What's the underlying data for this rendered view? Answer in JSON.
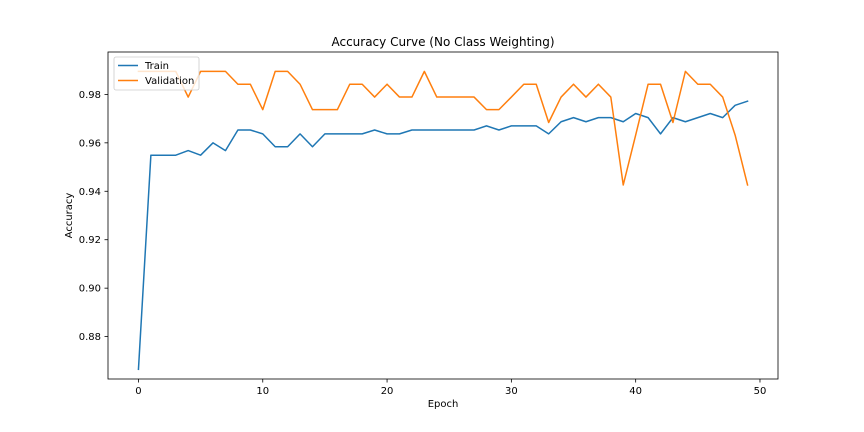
{
  "chart_data": {
    "type": "line",
    "title": "Accuracy Curve (No Class Weighting)",
    "xlabel": "Epoch",
    "ylabel": "Accuracy",
    "xlim": [
      -2.45,
      51.45
    ],
    "ylim": [
      0.8625,
      0.9975
    ],
    "xticks": [
      0,
      10,
      20,
      30,
      40,
      50
    ],
    "yticks": [
      0.88,
      0.9,
      0.92,
      0.94,
      0.96,
      0.98
    ],
    "ytick_labels": [
      "0.88",
      "0.90",
      "0.92",
      "0.94",
      "0.96",
      "0.98"
    ],
    "grid": false,
    "legend_position": "upper-left",
    "x": [
      0,
      1,
      2,
      3,
      4,
      5,
      6,
      7,
      8,
      9,
      10,
      11,
      12,
      13,
      14,
      15,
      16,
      17,
      18,
      19,
      20,
      21,
      22,
      23,
      24,
      25,
      26,
      27,
      28,
      29,
      30,
      31,
      32,
      33,
      34,
      35,
      36,
      37,
      38,
      39,
      40,
      41,
      42,
      43,
      44,
      45,
      46,
      47,
      48,
      49
    ],
    "series": [
      {
        "name": "Train",
        "color": "#1f77b4",
        "values": [
          0.8665,
          0.9549,
          0.9549,
          0.9549,
          0.9568,
          0.9549,
          0.96,
          0.9568,
          0.9653,
          0.9653,
          0.9637,
          0.9584,
          0.9584,
          0.9637,
          0.9584,
          0.9637,
          0.9637,
          0.9637,
          0.9637,
          0.9653,
          0.9637,
          0.9637,
          0.9653,
          0.9653,
          0.9653,
          0.9653,
          0.9653,
          0.9653,
          0.967,
          0.9653,
          0.967,
          0.967,
          0.967,
          0.9637,
          0.9687,
          0.9704,
          0.9687,
          0.9704,
          0.9704,
          0.9687,
          0.9721,
          0.9704,
          0.9637,
          0.9704,
          0.9687,
          0.9704,
          0.9721,
          0.9704,
          0.9755,
          0.9772
        ]
      },
      {
        "name": "Validation",
        "color": "#ff7f0e",
        "values": [
          0.9895,
          0.9895,
          0.9895,
          0.9895,
          0.9789,
          0.9895,
          0.9895,
          0.9895,
          0.9842,
          0.9842,
          0.9737,
          0.9895,
          0.9895,
          0.9842,
          0.9737,
          0.9737,
          0.9737,
          0.9842,
          0.9842,
          0.9789,
          0.9842,
          0.9789,
          0.9789,
          0.9895,
          0.9789,
          0.9789,
          0.9789,
          0.9789,
          0.9737,
          0.9737,
          0.9789,
          0.9842,
          0.9842,
          0.9684,
          0.9789,
          0.9842,
          0.9789,
          0.9842,
          0.9789,
          0.9426,
          0.9632,
          0.9842,
          0.9842,
          0.9684,
          0.9895,
          0.9842,
          0.9842,
          0.9789,
          0.9632,
          0.9426
        ]
      }
    ]
  }
}
